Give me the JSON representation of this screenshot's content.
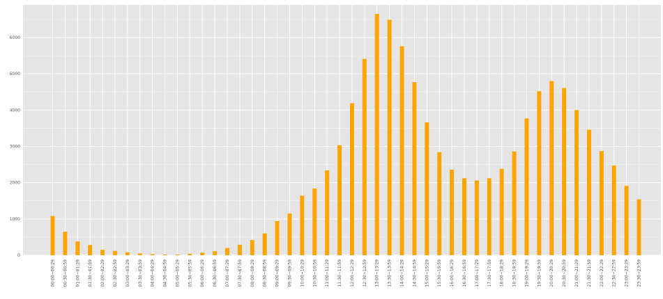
{
  "chart_data": {
    "type": "bar",
    "title": "",
    "xlabel": "",
    "ylabel": "",
    "ylim": [
      0,
      6900
    ],
    "yticks": [
      0,
      1000,
      2000,
      3000,
      4000,
      5000,
      6000
    ],
    "grid": true,
    "bar_color": "#FFA500",
    "background_color": "#E5E5E5",
    "categories": [
      "00:00~00:29",
      "00:30~00:59",
      "01:00~01:29",
      "01:30~01:59",
      "02:00~02:29",
      "02:30~02:59",
      "03:00~03:29",
      "03:30~03:59",
      "04:00~04:29",
      "04:30~04:59",
      "05:00~05:29",
      "05:30~05:59",
      "06:00~06:29",
      "06:30~06:59",
      "07:00~07:29",
      "07:30~07:59",
      "08:00~08:29",
      "08:30~08:59",
      "09:00~09:29",
      "09:30~09:59",
      "10:00~10:29",
      "10:30~10:59",
      "11:00~11:29",
      "11:30~11:59",
      "12:00~12:29",
      "12:30~12:59",
      "13:00~13:29",
      "13:30~13:59",
      "14:00~14:29",
      "14:30~14:59",
      "15:00~15:29",
      "15:30~15:59",
      "16:00~16:29",
      "16:30~16:59",
      "17:00~17:29",
      "17:30~17:59",
      "18:00~18:29",
      "18:30~18:59",
      "19:00~19:29",
      "19:30~19:59",
      "20:00~20:29",
      "20:30~20:59",
      "21:00~21:29",
      "21:30~21:59",
      "22:00~22:29",
      "22:30~22:59",
      "23:00~23:29",
      "23:30~23:59"
    ],
    "values": [
      1080,
      650,
      380,
      280,
      150,
      120,
      80,
      50,
      30,
      20,
      20,
      40,
      70,
      110,
      200,
      290,
      420,
      600,
      940,
      1150,
      1640,
      1840,
      2340,
      3030,
      4190,
      5410,
      6650,
      6490,
      5760,
      4770,
      3660,
      2840,
      2360,
      2120,
      2060,
      2120,
      2380,
      2860,
      3770,
      4520,
      4800,
      4610,
      4000,
      3460,
      2870,
      2470,
      1910,
      1540
    ]
  }
}
